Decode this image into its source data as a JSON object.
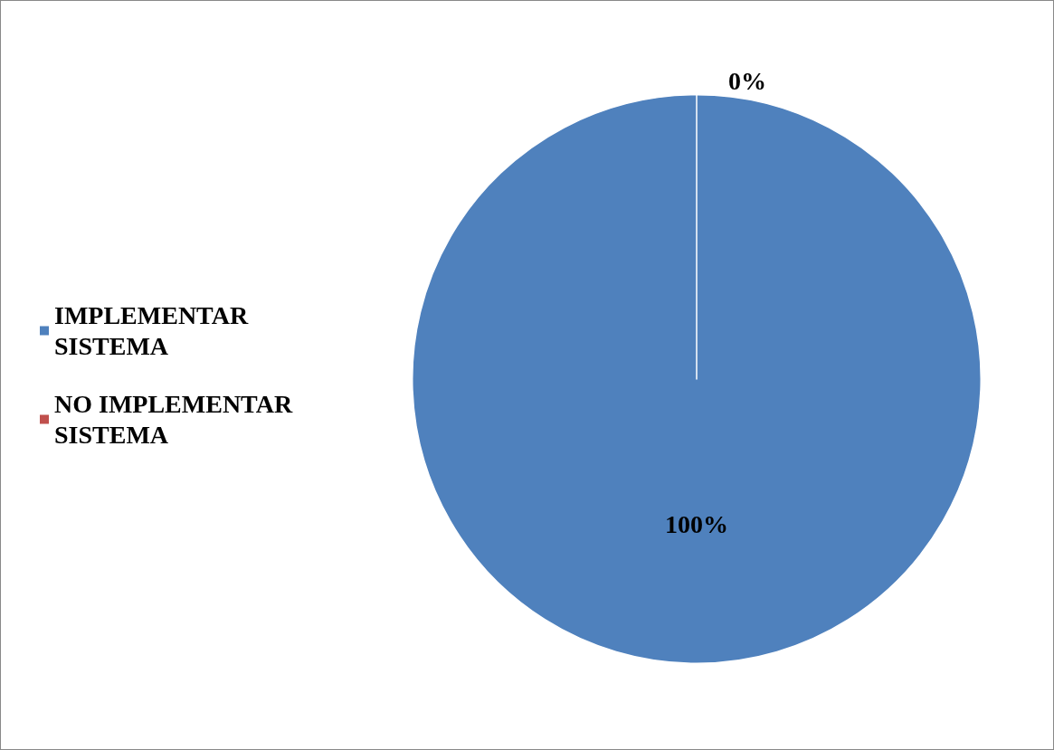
{
  "chart_data": {
    "type": "pie",
    "categories": [
      "IMPLEMENTAR SISTEMA",
      "NO IMPLEMENTAR SISTEMA"
    ],
    "values": [
      100,
      0
    ],
    "colors": [
      "#4f81bd",
      "#c0504d"
    ],
    "value_labels": [
      "100%",
      "0%"
    ],
    "legend": "left"
  }
}
